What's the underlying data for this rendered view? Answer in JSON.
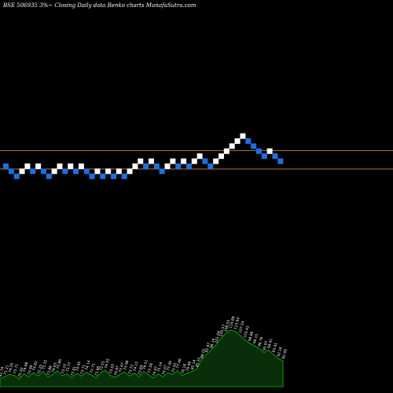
{
  "title": "BSE 506935 3%~  Closing Daily data  Renko  charts MunafaSutra.com",
  "chart_data": {
    "type": "renko",
    "title": "BSE 506935 3%~  Closing Daily data  Renko  charts MunafaSutra.com",
    "colors": {
      "background": "#000000",
      "up_brick": "#ffffff",
      "down_brick": "#1e6fe0",
      "reference_line": "#b8732f",
      "volume_fill": "#0a2e0a",
      "volume_stroke": "#00c000"
    },
    "reference_lines": [
      1,
      0
    ],
    "bricks": [
      {
        "d": "down",
        "lvl": 0
      },
      {
        "d": "down",
        "lvl": -1
      },
      {
        "d": "down",
        "lvl": -2
      },
      {
        "d": "up",
        "lvl": -1
      },
      {
        "d": "up",
        "lvl": 0
      },
      {
        "d": "down",
        "lvl": -1
      },
      {
        "d": "up",
        "lvl": 0
      },
      {
        "d": "down",
        "lvl": -1
      },
      {
        "d": "down",
        "lvl": -2
      },
      {
        "d": "up",
        "lvl": -1
      },
      {
        "d": "up",
        "lvl": 0
      },
      {
        "d": "down",
        "lvl": -1
      },
      {
        "d": "up",
        "lvl": 0
      },
      {
        "d": "down",
        "lvl": -1
      },
      {
        "d": "up",
        "lvl": 0
      },
      {
        "d": "down",
        "lvl": -1
      },
      {
        "d": "down",
        "lvl": -2
      },
      {
        "d": "up",
        "lvl": -1
      },
      {
        "d": "down",
        "lvl": -2
      },
      {
        "d": "up",
        "lvl": -1
      },
      {
        "d": "down",
        "lvl": -2
      },
      {
        "d": "up",
        "lvl": -1
      },
      {
        "d": "down",
        "lvl": -2
      },
      {
        "d": "up",
        "lvl": -1
      },
      {
        "d": "up",
        "lvl": 0
      },
      {
        "d": "up",
        "lvl": 1
      },
      {
        "d": "down",
        "lvl": 0
      },
      {
        "d": "up",
        "lvl": 1
      },
      {
        "d": "down",
        "lvl": 0
      },
      {
        "d": "down",
        "lvl": -1
      },
      {
        "d": "up",
        "lvl": 0
      },
      {
        "d": "up",
        "lvl": 1
      },
      {
        "d": "down",
        "lvl": 0
      },
      {
        "d": "up",
        "lvl": 1
      },
      {
        "d": "down",
        "lvl": 0
      },
      {
        "d": "up",
        "lvl": 1
      },
      {
        "d": "up",
        "lvl": 2
      },
      {
        "d": "down",
        "lvl": 1
      },
      {
        "d": "down",
        "lvl": 0
      },
      {
        "d": "up",
        "lvl": 1
      },
      {
        "d": "up",
        "lvl": 2
      },
      {
        "d": "up",
        "lvl": 3
      },
      {
        "d": "up",
        "lvl": 4
      },
      {
        "d": "up",
        "lvl": 5
      },
      {
        "d": "up",
        "lvl": 6
      },
      {
        "d": "down",
        "lvl": 5
      },
      {
        "d": "down",
        "lvl": 4
      },
      {
        "d": "down",
        "lvl": 3
      },
      {
        "d": "down",
        "lvl": 2
      },
      {
        "d": "up",
        "lvl": 3
      },
      {
        "d": "down",
        "lvl": 2
      },
      {
        "d": "down",
        "lvl": 1
      }
    ],
    "volume": [
      14,
      17,
      21,
      19,
      13,
      22,
      17,
      24,
      18,
      26,
      16,
      21,
      27,
      19,
      22,
      15,
      23,
      18,
      25,
      20,
      15,
      24,
      28,
      19,
      16,
      21,
      25,
      18,
      23,
      17,
      26,
      20,
      15,
      22,
      17,
      24,
      21,
      28,
      19,
      23,
      26,
      30,
      45,
      55,
      62,
      71,
      82,
      90,
      96,
      94,
      88,
      80,
      74,
      70,
      65,
      58,
      62,
      55,
      48,
      44
    ],
    "volume_labels": [
      "82.74",
      "71.21",
      "74.05",
      "73.71",
      "75.50",
      "74.68",
      "73.99",
      "74.82",
      "72.25",
      "75.32",
      "73.88",
      "74.63",
      "75.66",
      "73.10",
      "73.77",
      "72.01",
      "74.45",
      "73.71",
      "74.14",
      "72.71",
      "73.98",
      "73.51",
      "74.55",
      "73.03",
      "74.97",
      "73.47",
      "73.96",
      "73.72",
      "74.15",
      "73.69",
      "74.51",
      "73.58",
      "74.47",
      "75.14",
      "74.07",
      "75.39",
      "75.91",
      "77.46",
      "76.18",
      "79.48",
      "82.14",
      "85.22",
      "88.02",
      "92.97",
      "98.14",
      "101.04",
      "105.57",
      "108.55",
      "114.88",
      "113.94",
      "107.54",
      "103.42",
      "98.88",
      "99.15",
      "96.76",
      "95.97",
      "94.41",
      "93.41",
      "92.16",
      "92.49"
    ]
  }
}
